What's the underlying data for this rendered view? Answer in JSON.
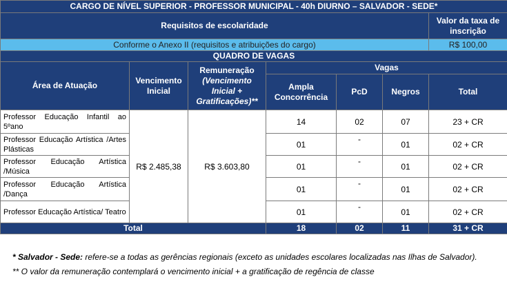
{
  "title": "CARGO DE NÍVEL SUPERIOR - PROFESSOR MUNICIPAL - 40h DIURNO – SALVADOR - SEDE*",
  "requisitos": {
    "header": "Requisitos de escolaridade",
    "taxa_header": "Valor da taxa de inscrição",
    "value": "Conforme o Anexo II (requisitos e atribuições do cargo)",
    "taxa_value": "R$ 100,00"
  },
  "quadro_title": "QUADRO DE VAGAS",
  "columns": {
    "area": "Área de Atuação",
    "vencimento": "Vencimento Inicial",
    "remuneracao": "Remuneração",
    "remuneracao_sub": "(Vencimento Inicial + Gratificações)**",
    "vagas": "Vagas",
    "ampla": "Ampla Concorrência",
    "pcd": "PcD",
    "negros": "Negros",
    "total": "Total"
  },
  "vencimento_value": "R$ 2.485,38",
  "remuneracao_value": "R$ 3.603,80",
  "rows": [
    {
      "area": "Professor Educação Infantil ao 5ºano",
      "ampla": "14",
      "pcd": "02",
      "negros": "07",
      "total": "23 + CR"
    },
    {
      "area": "Professor Educação Artística /Artes Plásticas",
      "ampla": "01",
      "pcd": "-",
      "negros": "01",
      "total": "02 + CR"
    },
    {
      "area": "Professor Educação Artística /Música",
      "ampla": "01",
      "pcd": "-",
      "negros": "01",
      "total": "02 + CR"
    },
    {
      "area": "Professor Educação Artística /Dança",
      "ampla": "01",
      "pcd": "-",
      "negros": "01",
      "total": "02 + CR"
    },
    {
      "area": "Professor Educação Artística/ Teatro",
      "ampla": "01",
      "pcd": "-",
      "negros": "01",
      "total": "02 + CR"
    }
  ],
  "totals": {
    "label": "Total",
    "ampla": "18",
    "pcd": "02",
    "negros": "11",
    "total": "31 + CR"
  },
  "notes": {
    "note1_bold": "* Salvador - Sede:",
    "note1_rest": " refere-se a todas as gerências regionais (exceto as unidades escolares localizadas nas Ilhas de Salvador).",
    "note2": "** O valor da remuneração contemplará o vencimento inicial + a gratificação de regência de classe"
  },
  "colors": {
    "header_dark": "#1f3f7a",
    "header_light": "#5bbcec"
  }
}
